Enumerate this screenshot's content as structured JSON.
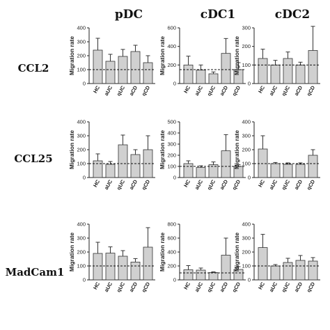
{
  "columns": [
    "pDC",
    "cDC1",
    "cDC2"
  ],
  "rows": [
    "CCL2",
    "CCL25",
    "MadCam1"
  ],
  "colors": {
    "bar_fill": "#d0d0d0",
    "bar_stroke": "#333333",
    "axis": "#222222"
  },
  "chart_data": [
    {
      "type": "bar",
      "row": "CCL2",
      "column": "pDC",
      "categories": [
        "HC",
        "aUC",
        "qUC",
        "aCD",
        "qCD"
      ],
      "values": [
        240,
        160,
        195,
        230,
        150
      ],
      "errors": [
        85,
        50,
        50,
        45,
        50
      ],
      "ylabel": "Migration rate",
      "ylim": [
        0,
        400
      ],
      "yticks": [
        0,
        100,
        200,
        300,
        400
      ],
      "reference_line": 100
    },
    {
      "type": "bar",
      "row": "CCL2",
      "column": "cDC1",
      "categories": [
        "HC",
        "aUC",
        "qUC",
        "aCD",
        "qCD"
      ],
      "values": [
        200,
        145,
        105,
        325,
        150
      ],
      "errors": [
        95,
        55,
        20,
        160,
        75
      ],
      "ylabel": "Migration rate",
      "ylim": [
        0,
        600
      ],
      "yticks": [
        0,
        200,
        400,
        600
      ],
      "reference_line": 150
    },
    {
      "type": "bar",
      "row": "CCL2",
      "column": "cDC2",
      "categories": [
        "HC",
        "aUC",
        "qUC",
        "aCD",
        "qCD"
      ],
      "values": [
        135,
        100,
        135,
        100,
        178
      ],
      "errors": [
        50,
        25,
        35,
        15,
        130
      ],
      "ylabel": "Migration rate",
      "ylim": [
        0,
        300
      ],
      "yticks": [
        0,
        100,
        200,
        300
      ],
      "reference_line": 100
    },
    {
      "type": "bar",
      "row": "CCL25",
      "column": "pDC",
      "categories": [
        "HC",
        "aUC",
        "qUC",
        "aCD",
        "qCD"
      ],
      "values": [
        120,
        95,
        235,
        165,
        200
      ],
      "errors": [
        50,
        20,
        70,
        35,
        100
      ],
      "ylabel": "Migration rate",
      "ylim": [
        0,
        400
      ],
      "yticks": [
        0,
        100,
        200,
        300,
        400
      ],
      "reference_line": 100
    },
    {
      "type": "bar",
      "row": "CCL25",
      "column": "cDC1",
      "categories": [
        "HC",
        "aUC",
        "qUC",
        "aCD",
        "qCD"
      ],
      "values": [
        125,
        90,
        115,
        240,
        100
      ],
      "errors": [
        25,
        15,
        25,
        145,
        15
      ],
      "ylabel": "Migration rate",
      "ylim": [
        0,
        500
      ],
      "yticks": [
        0,
        100,
        200,
        300,
        400,
        500
      ],
      "reference_line": 100
    },
    {
      "type": "bar",
      "row": "CCL25",
      "column": "cDC2",
      "categories": [
        "HC",
        "aUC",
        "qUC",
        "aCD",
        "qCD"
      ],
      "values": [
        205,
        100,
        95,
        95,
        160
      ],
      "errors": [
        95,
        8,
        10,
        10,
        40
      ],
      "ylabel": "Migration rate",
      "ylim": [
        0,
        400
      ],
      "yticks": [
        0,
        100,
        200,
        300,
        400
      ],
      "reference_line": 100
    },
    {
      "type": "bar",
      "row": "MadCam1",
      "column": "pDC",
      "categories": [
        "HC",
        "aUC",
        "qUC",
        "aCD",
        "qCD"
      ],
      "values": [
        190,
        192,
        170,
        128,
        235
      ],
      "errors": [
        80,
        45,
        40,
        25,
        140
      ],
      "ylabel": "Migration rate",
      "ylim": [
        0,
        400
      ],
      "yticks": [
        0,
        100,
        200,
        300,
        400
      ],
      "reference_line": 100
    },
    {
      "type": "bar",
      "row": "MadCam1",
      "column": "cDC1",
      "categories": [
        "HC",
        "aUC",
        "qUC",
        "aCD",
        "qCD"
      ],
      "values": [
        145,
        140,
        105,
        355,
        150
      ],
      "errors": [
        60,
        30,
        10,
        245,
        40
      ],
      "ylabel": "Migration rate",
      "ylim": [
        0,
        800
      ],
      "yticks": [
        0,
        200,
        400,
        600,
        800
      ],
      "reference_line": 100
    },
    {
      "type": "bar",
      "row": "MadCam1",
      "column": "cDC2",
      "categories": [
        "HC",
        "aUC",
        "qUC",
        "aCD",
        "qCD"
      ],
      "values": [
        232,
        100,
        125,
        140,
        135
      ],
      "errors": [
        95,
        10,
        30,
        35,
        25
      ],
      "ylabel": "Migration rate",
      "ylim": [
        0,
        400
      ],
      "yticks": [
        0,
        100,
        200,
        300,
        400
      ],
      "reference_line": 100
    }
  ]
}
